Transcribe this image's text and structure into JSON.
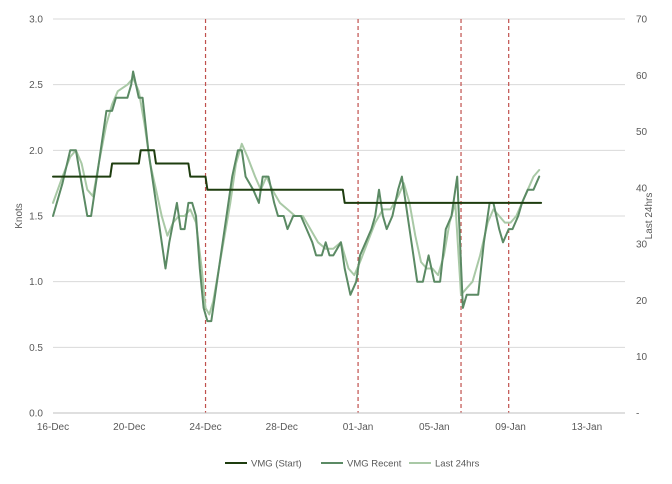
{
  "chart_data": {
    "type": "line",
    "title": "",
    "ylabel": "Knots",
    "y2label": "Last 24hrs",
    "ylim": [
      0,
      3.0
    ],
    "y2lim": [
      0,
      70
    ],
    "yticks": [
      "0.0",
      "0.5",
      "1.0",
      "1.5",
      "2.0",
      "2.5",
      "3.0"
    ],
    "y2ticks": [
      "-",
      "10",
      "20",
      "30",
      "40",
      "50",
      "60",
      "70"
    ],
    "xticks": [
      "16-Dec",
      "20-Dec",
      "24-Dec",
      "28-Dec",
      "01-Jan",
      "05-Jan",
      "09-Jan",
      "13-Jan"
    ],
    "xlim_days": [
      0,
      30
    ],
    "markers_days": [
      8.0,
      16.0,
      21.4,
      23.9
    ],
    "grid": "horizontal",
    "legend": "bottom",
    "series": [
      {
        "name": "VMG (Start)",
        "color": "#1e3d0f",
        "width": 2,
        "points": [
          [
            0,
            1.8
          ],
          [
            3,
            1.8
          ],
          [
            3,
            1.8
          ],
          [
            3.1,
            1.9
          ],
          [
            4.5,
            1.9
          ],
          [
            4.6,
            2.0
          ],
          [
            5.3,
            2.0
          ],
          [
            5.4,
            1.9
          ],
          [
            7.1,
            1.9
          ],
          [
            7.2,
            1.8
          ],
          [
            8.0,
            1.8
          ],
          [
            8.1,
            1.7
          ],
          [
            15.2,
            1.7
          ],
          [
            15.3,
            1.6
          ],
          [
            25.6,
            1.6
          ]
        ]
      },
      {
        "name": "VMG Recent",
        "color": "#5b8a64",
        "width": 2,
        "points": [
          [
            0,
            1.5
          ],
          [
            0.5,
            1.75
          ],
          [
            0.9,
            2.0
          ],
          [
            1.2,
            2.0
          ],
          [
            1.5,
            1.75
          ],
          [
            1.8,
            1.5
          ],
          [
            2.0,
            1.5
          ],
          [
            2.3,
            1.8
          ],
          [
            2.6,
            2.1
          ],
          [
            2.8,
            2.3
          ],
          [
            3.1,
            2.3
          ],
          [
            3.3,
            2.4
          ],
          [
            3.9,
            2.4
          ],
          [
            4.1,
            2.5
          ],
          [
            4.2,
            2.6
          ],
          [
            4.5,
            2.4
          ],
          [
            4.7,
            2.4
          ],
          [
            5.0,
            2.0
          ],
          [
            5.3,
            1.7
          ],
          [
            5.6,
            1.4
          ],
          [
            5.9,
            1.1
          ],
          [
            6.1,
            1.3
          ],
          [
            6.5,
            1.6
          ],
          [
            6.7,
            1.4
          ],
          [
            6.9,
            1.4
          ],
          [
            7.1,
            1.6
          ],
          [
            7.3,
            1.6
          ],
          [
            7.5,
            1.5
          ],
          [
            7.7,
            1.1
          ],
          [
            7.9,
            0.8
          ],
          [
            8.1,
            0.7
          ],
          [
            8.3,
            0.7
          ],
          [
            8.5,
            0.9
          ],
          [
            8.8,
            1.2
          ],
          [
            9.1,
            1.5
          ],
          [
            9.4,
            1.8
          ],
          [
            9.7,
            2.0
          ],
          [
            9.9,
            2.0
          ],
          [
            10.1,
            1.8
          ],
          [
            10.5,
            1.7
          ],
          [
            10.8,
            1.6
          ],
          [
            11.0,
            1.8
          ],
          [
            11.3,
            1.8
          ],
          [
            11.6,
            1.6
          ],
          [
            11.8,
            1.5
          ],
          [
            12.1,
            1.5
          ],
          [
            12.3,
            1.4
          ],
          [
            12.6,
            1.5
          ],
          [
            13.0,
            1.5
          ],
          [
            13.3,
            1.4
          ],
          [
            13.6,
            1.3
          ],
          [
            13.8,
            1.2
          ],
          [
            14.1,
            1.2
          ],
          [
            14.3,
            1.3
          ],
          [
            14.5,
            1.2
          ],
          [
            14.7,
            1.2
          ],
          [
            15.1,
            1.3
          ],
          [
            15.3,
            1.1
          ],
          [
            15.6,
            0.9
          ],
          [
            15.9,
            1.0
          ],
          [
            16.1,
            1.2
          ],
          [
            16.4,
            1.3
          ],
          [
            16.7,
            1.4
          ],
          [
            16.9,
            1.5
          ],
          [
            17.1,
            1.7
          ],
          [
            17.3,
            1.5
          ],
          [
            17.5,
            1.4
          ],
          [
            17.8,
            1.5
          ],
          [
            18.1,
            1.7
          ],
          [
            18.3,
            1.8
          ],
          [
            18.6,
            1.5
          ],
          [
            18.9,
            1.2
          ],
          [
            19.1,
            1.0
          ],
          [
            19.4,
            1.0
          ],
          [
            19.7,
            1.2
          ],
          [
            20.0,
            1.0
          ],
          [
            20.3,
            1.0
          ],
          [
            20.6,
            1.4
          ],
          [
            20.9,
            1.5
          ],
          [
            21.2,
            1.8
          ],
          [
            21.5,
            0.8
          ],
          [
            21.7,
            0.9
          ],
          [
            21.9,
            0.9
          ],
          [
            22.3,
            0.9
          ],
          [
            22.6,
            1.3
          ],
          [
            22.9,
            1.6
          ],
          [
            23.1,
            1.6
          ],
          [
            23.4,
            1.4
          ],
          [
            23.6,
            1.3
          ],
          [
            23.9,
            1.4
          ],
          [
            24.1,
            1.4
          ],
          [
            24.4,
            1.5
          ],
          [
            24.6,
            1.6
          ],
          [
            24.9,
            1.7
          ],
          [
            25.2,
            1.7
          ],
          [
            25.5,
            1.8
          ]
        ]
      },
      {
        "name": "Last 24hrs",
        "color": "#a9c9a6",
        "width": 2,
        "points": [
          [
            0,
            1.6
          ],
          [
            0.5,
            1.8
          ],
          [
            0.9,
            1.95
          ],
          [
            1.2,
            2.0
          ],
          [
            1.5,
            1.9
          ],
          [
            1.8,
            1.7
          ],
          [
            2.1,
            1.65
          ],
          [
            2.4,
            1.9
          ],
          [
            2.8,
            2.2
          ],
          [
            3.1,
            2.35
          ],
          [
            3.4,
            2.45
          ],
          [
            3.9,
            2.5
          ],
          [
            4.2,
            2.55
          ],
          [
            4.5,
            2.45
          ],
          [
            4.8,
            2.2
          ],
          [
            5.1,
            1.9
          ],
          [
            5.4,
            1.7
          ],
          [
            5.7,
            1.5
          ],
          [
            6.0,
            1.35
          ],
          [
            6.3,
            1.45
          ],
          [
            6.6,
            1.5
          ],
          [
            6.9,
            1.5
          ],
          [
            7.2,
            1.55
          ],
          [
            7.5,
            1.45
          ],
          [
            7.8,
            1.1
          ],
          [
            8.0,
            0.8
          ],
          [
            8.2,
            0.75
          ],
          [
            8.4,
            0.85
          ],
          [
            8.7,
            1.1
          ],
          [
            9.0,
            1.35
          ],
          [
            9.3,
            1.6
          ],
          [
            9.6,
            1.9
          ],
          [
            9.9,
            2.05
          ],
          [
            10.2,
            1.95
          ],
          [
            10.6,
            1.8
          ],
          [
            10.9,
            1.7
          ],
          [
            11.2,
            1.8
          ],
          [
            11.5,
            1.7
          ],
          [
            11.9,
            1.6
          ],
          [
            12.3,
            1.55
          ],
          [
            12.7,
            1.5
          ],
          [
            13.1,
            1.5
          ],
          [
            13.5,
            1.4
          ],
          [
            13.9,
            1.3
          ],
          [
            14.3,
            1.25
          ],
          [
            14.7,
            1.25
          ],
          [
            15.1,
            1.3
          ],
          [
            15.5,
            1.1
          ],
          [
            15.8,
            1.05
          ],
          [
            16.1,
            1.15
          ],
          [
            16.5,
            1.3
          ],
          [
            16.9,
            1.45
          ],
          [
            17.3,
            1.55
          ],
          [
            17.7,
            1.55
          ],
          [
            18.1,
            1.65
          ],
          [
            18.4,
            1.75
          ],
          [
            18.7,
            1.6
          ],
          [
            19.0,
            1.35
          ],
          [
            19.3,
            1.15
          ],
          [
            19.6,
            1.1
          ],
          [
            19.9,
            1.1
          ],
          [
            20.2,
            1.05
          ],
          [
            20.5,
            1.2
          ],
          [
            20.8,
            1.45
          ],
          [
            21.1,
            1.6
          ],
          [
            21.4,
            0.9
          ],
          [
            21.7,
            0.95
          ],
          [
            22.0,
            1.0
          ],
          [
            22.4,
            1.2
          ],
          [
            22.8,
            1.45
          ],
          [
            23.1,
            1.55
          ],
          [
            23.4,
            1.5
          ],
          [
            23.7,
            1.45
          ],
          [
            24.0,
            1.45
          ],
          [
            24.3,
            1.5
          ],
          [
            24.6,
            1.6
          ],
          [
            24.9,
            1.7
          ],
          [
            25.2,
            1.8
          ],
          [
            25.5,
            1.85
          ]
        ]
      }
    ]
  }
}
